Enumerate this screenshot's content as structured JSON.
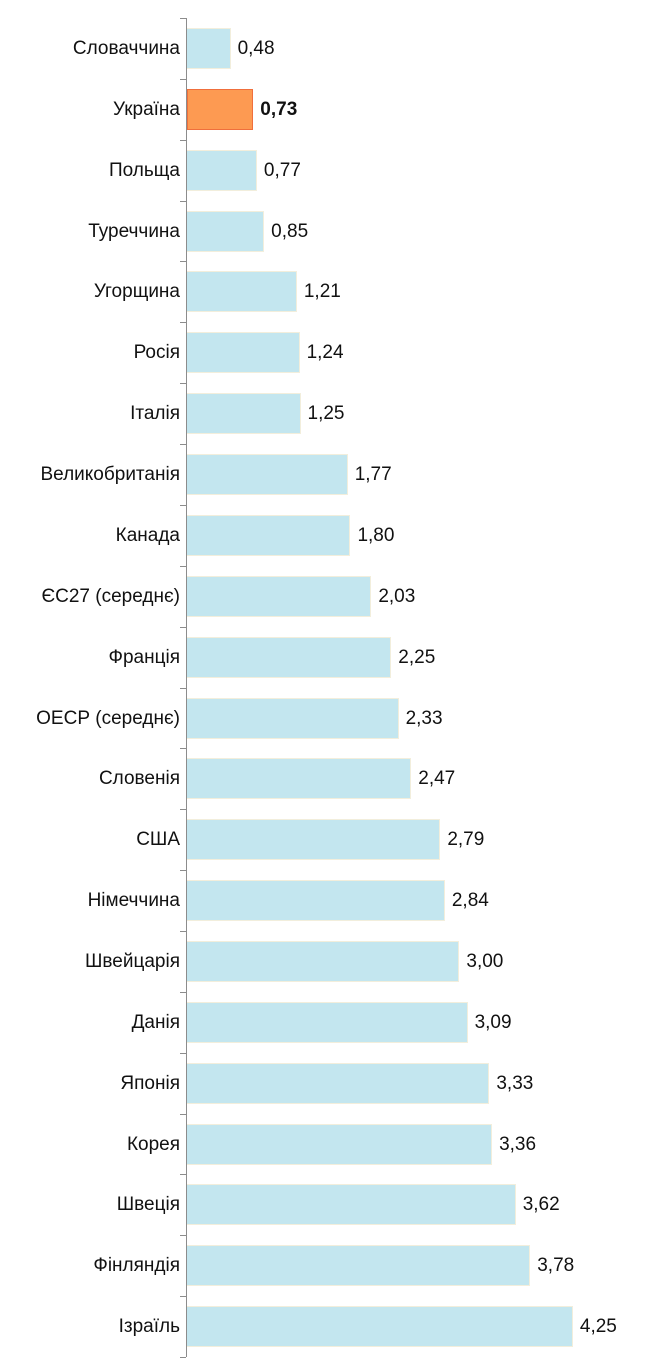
{
  "chart_data": {
    "type": "bar",
    "orientation": "horizontal",
    "title": "",
    "xlabel": "",
    "ylabel": "",
    "grid": false,
    "legend": null,
    "xlim": [
      0,
      4.5
    ],
    "decimal_separator": ",",
    "highlight": {
      "category": "Україна",
      "color": "#fd9a52"
    },
    "bar_color": "#c3e6ef",
    "categories": [
      "Словаччина",
      "Україна",
      "Польща",
      "Туреччина",
      "Угорщина",
      "Росія",
      "Італія",
      "Великобританія",
      "Канада",
      "ЄС27 (середнє)",
      "Франція",
      "ОЕСР (середнє)",
      "Словенія",
      "США",
      "Німеччина",
      "Швейцарія",
      "Данія",
      "Японія",
      "Корея",
      "Швеція",
      "Фінляндія",
      "Ізраїль"
    ],
    "values": [
      0.48,
      0.73,
      0.77,
      0.85,
      1.21,
      1.24,
      1.25,
      1.77,
      1.8,
      2.03,
      2.25,
      2.33,
      2.47,
      2.79,
      2.84,
      3.0,
      3.09,
      3.33,
      3.36,
      3.62,
      3.78,
      4.25
    ],
    "value_labels": [
      "0,48",
      "0,73",
      "0,77",
      "0,85",
      "1,21",
      "1,24",
      "1,25",
      "1,77",
      "1,80",
      "2,03",
      "2,25",
      "2,33",
      "2,47",
      "2,79",
      "2,84",
      "3,00",
      "3,09",
      "3,33",
      "3,36",
      "3,62",
      "3,78",
      "4,25"
    ]
  }
}
